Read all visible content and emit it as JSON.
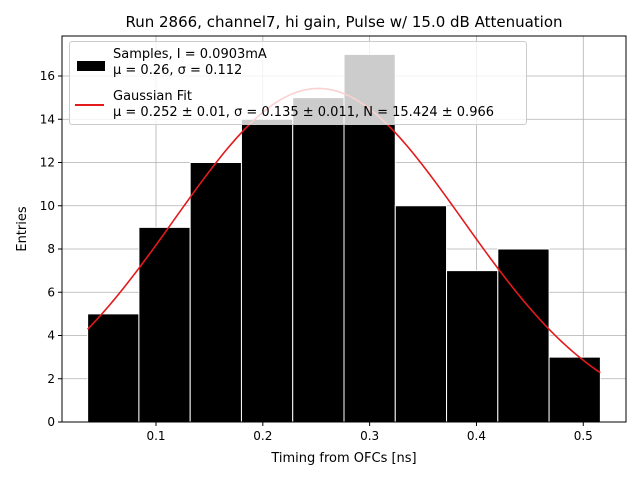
{
  "chart_data": {
    "type": "bar",
    "title": "Run 2866, channel7, hi gain, Pulse w/ 15.0 dB Attenuation",
    "xlabel": "Timing from OFCs [ns]",
    "ylabel": "Entries",
    "xlim": [
      0.012,
      0.54
    ],
    "ylim": [
      0,
      17.85
    ],
    "xticks": [
      "0.1",
      "0.2",
      "0.3",
      "0.4",
      "0.5"
    ],
    "yticks": [
      "0",
      "2",
      "4",
      "6",
      "8",
      "10",
      "12",
      "14",
      "16"
    ],
    "grid": true,
    "legend_position": "top-left",
    "bins": [
      {
        "left": 0.036,
        "right": 0.084,
        "value": 5
      },
      {
        "left": 0.084,
        "right": 0.132,
        "value": 9
      },
      {
        "left": 0.132,
        "right": 0.18,
        "value": 12
      },
      {
        "left": 0.18,
        "right": 0.228,
        "value": 14
      },
      {
        "left": 0.228,
        "right": 0.276,
        "value": 15
      },
      {
        "left": 0.276,
        "right": 0.324,
        "value": 17
      },
      {
        "left": 0.324,
        "right": 0.372,
        "value": 10
      },
      {
        "left": 0.372,
        "right": 0.42,
        "value": 7
      },
      {
        "left": 0.42,
        "right": 0.468,
        "value": 8
      },
      {
        "left": 0.468,
        "right": 0.516,
        "value": 3
      }
    ],
    "series": [
      {
        "name": "Samples, I = 0.0903mA",
        "stats": "μ = 0.26, σ = 0.112",
        "color": "#000000",
        "kind": "histogram"
      },
      {
        "name": "Gaussian Fit",
        "stats": "μ = 0.252 ± 0.01, σ = 0.135 ± 0.011, N = 15.424 ± 0.966",
        "color": "#e31a1c",
        "kind": "line",
        "fit": {
          "mu": 0.252,
          "sigma": 0.135,
          "N": 15.424,
          "x_range": [
            0.036,
            0.516
          ]
        }
      }
    ]
  }
}
